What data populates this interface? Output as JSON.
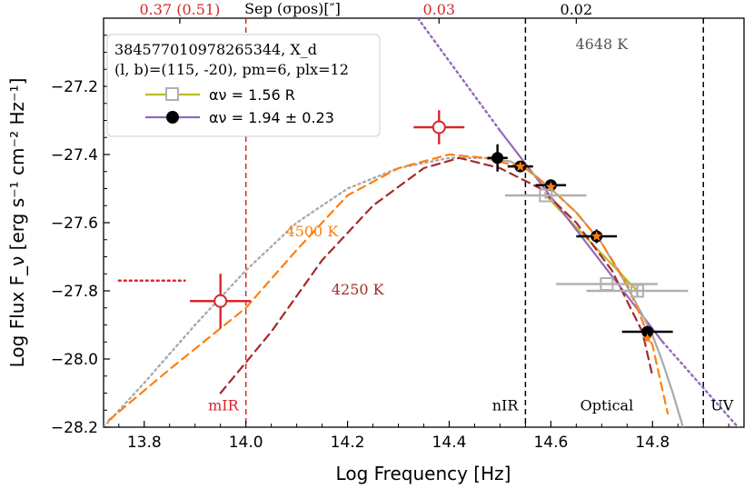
{
  "chart_data": {
    "type": "scatter",
    "title": "",
    "xlabel": "Log Frequency [Hz]",
    "ylabel": "Log Flux F_ν [erg s⁻¹ cm⁻² Hz⁻¹]",
    "xlim": [
      13.72,
      14.98
    ],
    "ylim": [
      -28.2,
      -27.0
    ],
    "x_ticks": [
      "13.8",
      "14.0",
      "14.2",
      "14.4",
      "14.6",
      "14.8"
    ],
    "y_ticks": [
      "−27.2",
      "−27.4",
      "−27.6",
      "−27.8",
      "−28.0",
      "−28.2"
    ],
    "top_axis": {
      "label": "Sep (σpos)[″]",
      "tick_labels": [
        {
          "text": "0.37 (0.51)",
          "x": 13.87,
          "color": "#d62728"
        },
        {
          "text": "0.03",
          "x": 14.38,
          "color": "#d62728"
        },
        {
          "text": "0.02",
          "x": 14.65,
          "color": "#000000"
        }
      ]
    },
    "legend": {
      "position": "top-left",
      "header_line1": "384577010978265344, X_d",
      "header_line2": "(l, b)=(115, -20), pm=6, plx=12",
      "entries": [
        {
          "label": "αν =  1.56   R",
          "color": "#bcbd22",
          "marker": "open-square"
        },
        {
          "label": "αν =  1.94 ± 0.23",
          "color": "#9467bd",
          "marker": "filled-circle"
        }
      ]
    },
    "vertical_lines": [
      {
        "x": 14.0,
        "color": "#d62728",
        "style": "dashed",
        "label": "mIR"
      },
      {
        "x": 14.55,
        "color": "#000000",
        "style": "dashed",
        "label": "nIR"
      },
      {
        "x": 14.9,
        "color": "#000000",
        "style": "dashed",
        "label": "UV"
      }
    ],
    "region_labels": [
      {
        "text": "Optical",
        "x": 14.71,
        "y": -28.15
      }
    ],
    "annotations": [
      {
        "text": "4648 K",
        "x": 14.7,
        "y": -27.09,
        "color": "#555555"
      },
      {
        "text": "4500 K",
        "x": 14.13,
        "y": -27.64,
        "color": "#ff7f0e"
      },
      {
        "text": "4250 K",
        "x": 14.22,
        "y": -27.81,
        "color": "#a52a2a"
      }
    ],
    "series": [
      {
        "name": "mIR upper limit",
        "type": "hline",
        "color": "#d62728",
        "style": "dotted",
        "x": [
          13.75,
          13.88
        ],
        "y": [
          -27.77,
          -27.77
        ]
      },
      {
        "name": "mIR/red detections",
        "type": "points",
        "color": "#d62728",
        "marker": "open-circle",
        "points": [
          {
            "x": 13.95,
            "y": -27.83,
            "xerr": 0.06,
            "yerr": 0.08
          },
          {
            "x": 14.38,
            "y": -27.32,
            "xerr": 0.05,
            "yerr": 0.05
          }
        ]
      },
      {
        "name": "photometry (black)",
        "type": "points",
        "color": "#000000",
        "marker": "filled-circle",
        "points": [
          {
            "x": 14.495,
            "y": -27.41,
            "xerr": 0.02,
            "yerr": 0.04
          },
          {
            "x": 14.54,
            "y": -27.435,
            "xerr": 0.025,
            "yerr": 0.015
          },
          {
            "x": 14.6,
            "y": -27.49,
            "xerr": 0.03,
            "yerr": 0.015
          },
          {
            "x": 14.69,
            "y": -27.64,
            "xerr": 0.04,
            "yerr": 0.02
          },
          {
            "x": 14.79,
            "y": -27.92,
            "xerr": 0.05,
            "yerr": 0.015
          }
        ]
      },
      {
        "name": "orange model points",
        "type": "points",
        "color": "#ff7f0e",
        "marker": "star",
        "points": [
          {
            "x": 14.54,
            "y": -27.435
          },
          {
            "x": 14.6,
            "y": -27.495
          },
          {
            "x": 14.69,
            "y": -27.64
          },
          {
            "x": 14.79,
            "y": -27.94
          }
        ]
      },
      {
        "name": "grey photometry",
        "type": "points",
        "color": "#b0b0b0",
        "marker": "open-square",
        "points": [
          {
            "x": 14.59,
            "y": -27.52,
            "xerr": 0.08,
            "yerr": 0.01
          },
          {
            "x": 14.71,
            "y": -27.78,
            "xerr": 0.1,
            "yerr": 0.0
          },
          {
            "x": 14.77,
            "y": -27.8,
            "xerr": 0.1,
            "yerr": 0.02
          }
        ]
      },
      {
        "name": "R fit",
        "type": "line",
        "color": "#bcbd22",
        "style": "solid",
        "x": [
          14.59,
          14.77
        ],
        "y": [
          -27.52,
          -27.8
        ]
      },
      {
        "name": "αν = 1.94 fit",
        "type": "line",
        "color": "#9467bd",
        "style": "solid",
        "x": [
          14.5,
          14.82
        ],
        "y": [
          -27.33,
          -27.95
        ]
      },
      {
        "name": "αν = 1.94 extension",
        "type": "line",
        "color": "#9467bd",
        "style": "dotted",
        "x": [
          14.25,
          14.5
        ],
        "y": [
          -26.82,
          -27.33
        ]
      },
      {
        "name": "αν = 1.94 extension UV",
        "type": "line",
        "color": "#9467bd",
        "style": "dotted",
        "x": [
          14.82,
          14.98
        ],
        "y": [
          -27.95,
          -28.22
        ]
      },
      {
        "name": "4648 K blackbody",
        "type": "line",
        "color": "#aaaaaa",
        "style": "dotted",
        "x": [
          13.72,
          13.8,
          13.9,
          14.0,
          14.1,
          14.2,
          14.3,
          14.4,
          14.47
        ],
        "y": [
          -28.2,
          -28.07,
          -27.9,
          -27.74,
          -27.6,
          -27.5,
          -27.44,
          -27.41,
          -27.41
        ]
      },
      {
        "name": "4648 K model (solid)",
        "type": "line",
        "color": "#aaaaaa",
        "style": "solid",
        "x": [
          14.47,
          14.52,
          14.56,
          14.6,
          14.65,
          14.7,
          14.74,
          14.78,
          14.8,
          14.82,
          14.84,
          14.86
        ],
        "y": [
          -27.41,
          -27.42,
          -27.45,
          -27.5,
          -27.57,
          -27.66,
          -27.76,
          -27.87,
          -27.93,
          -28.01,
          -28.1,
          -28.2
        ]
      },
      {
        "name": "4500 K",
        "type": "line",
        "color": "#ff7f0e",
        "style": "dashed",
        "x": [
          13.73,
          13.85,
          14.0,
          14.1,
          14.2,
          14.3,
          14.4,
          14.47,
          14.55,
          14.6,
          14.65,
          14.7,
          14.75,
          14.8,
          14.83
        ],
        "y": [
          -28.18,
          -28.03,
          -27.85,
          -27.68,
          -27.52,
          -27.44,
          -27.4,
          -27.41,
          -27.44,
          -27.5,
          -27.57,
          -27.66,
          -27.78,
          -27.96,
          -28.16
        ]
      },
      {
        "name": "4250 K",
        "type": "line",
        "color": "#a52a2a",
        "style": "dashed",
        "x": [
          13.95,
          14.05,
          14.15,
          14.25,
          14.35,
          14.42,
          14.5,
          14.58,
          14.65,
          14.72,
          14.78,
          14.8
        ],
        "y": [
          -28.1,
          -27.92,
          -27.71,
          -27.55,
          -27.44,
          -27.41,
          -27.44,
          -27.5,
          -27.6,
          -27.74,
          -27.92,
          -28.05
        ]
      }
    ]
  }
}
